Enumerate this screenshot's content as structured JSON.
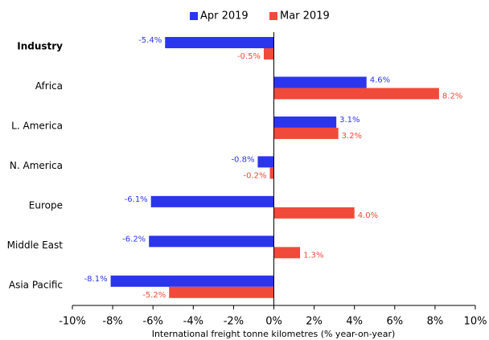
{
  "chart_data": {
    "type": "hbar",
    "x_label": "International freight tonne kilometres (% year-on-year)",
    "categories": [
      "Industry",
      "Africa",
      "L. America",
      "N. America",
      "Europe",
      "Middle East",
      "Asia Pacific"
    ],
    "series": [
      {
        "name": "Apr 2019",
        "color": "#2b35ee",
        "values": [
          -5.4,
          4.6,
          3.1,
          -0.8,
          -6.1,
          -6.2,
          -8.1
        ],
        "value_labels": [
          "-5.4%",
          "4.6%",
          "3.1%",
          "-0.8%",
          "-6.1%",
          "-6.2%",
          "-8.1%"
        ]
      },
      {
        "name": "Mar 2019",
        "color": "#f04a3a",
        "values": [
          -0.5,
          8.2,
          3.2,
          -0.2,
          4.0,
          1.3,
          -5.2
        ],
        "value_labels": [
          "-0.5%",
          "8.2%",
          "3.2%",
          "-0.2%",
          "4.0%",
          "1.3%",
          "-5.2%"
        ]
      }
    ],
    "xlim": [
      -10,
      10
    ],
    "xticks": [
      {
        "value": -10,
        "label": "-10%"
      },
      {
        "value": -8,
        "label": "-8%"
      },
      {
        "value": -6,
        "label": "-6%"
      },
      {
        "value": -4,
        "label": "-4%"
      },
      {
        "value": -2,
        "label": "-2%"
      },
      {
        "value": 0,
        "label": "0%"
      },
      {
        "value": 2,
        "label": "2%"
      },
      {
        "value": 4,
        "label": "4%"
      },
      {
        "value": 6,
        "label": "6%"
      },
      {
        "value": 8,
        "label": "8%"
      },
      {
        "value": 10,
        "label": "10%"
      }
    ],
    "legend": "top"
  }
}
